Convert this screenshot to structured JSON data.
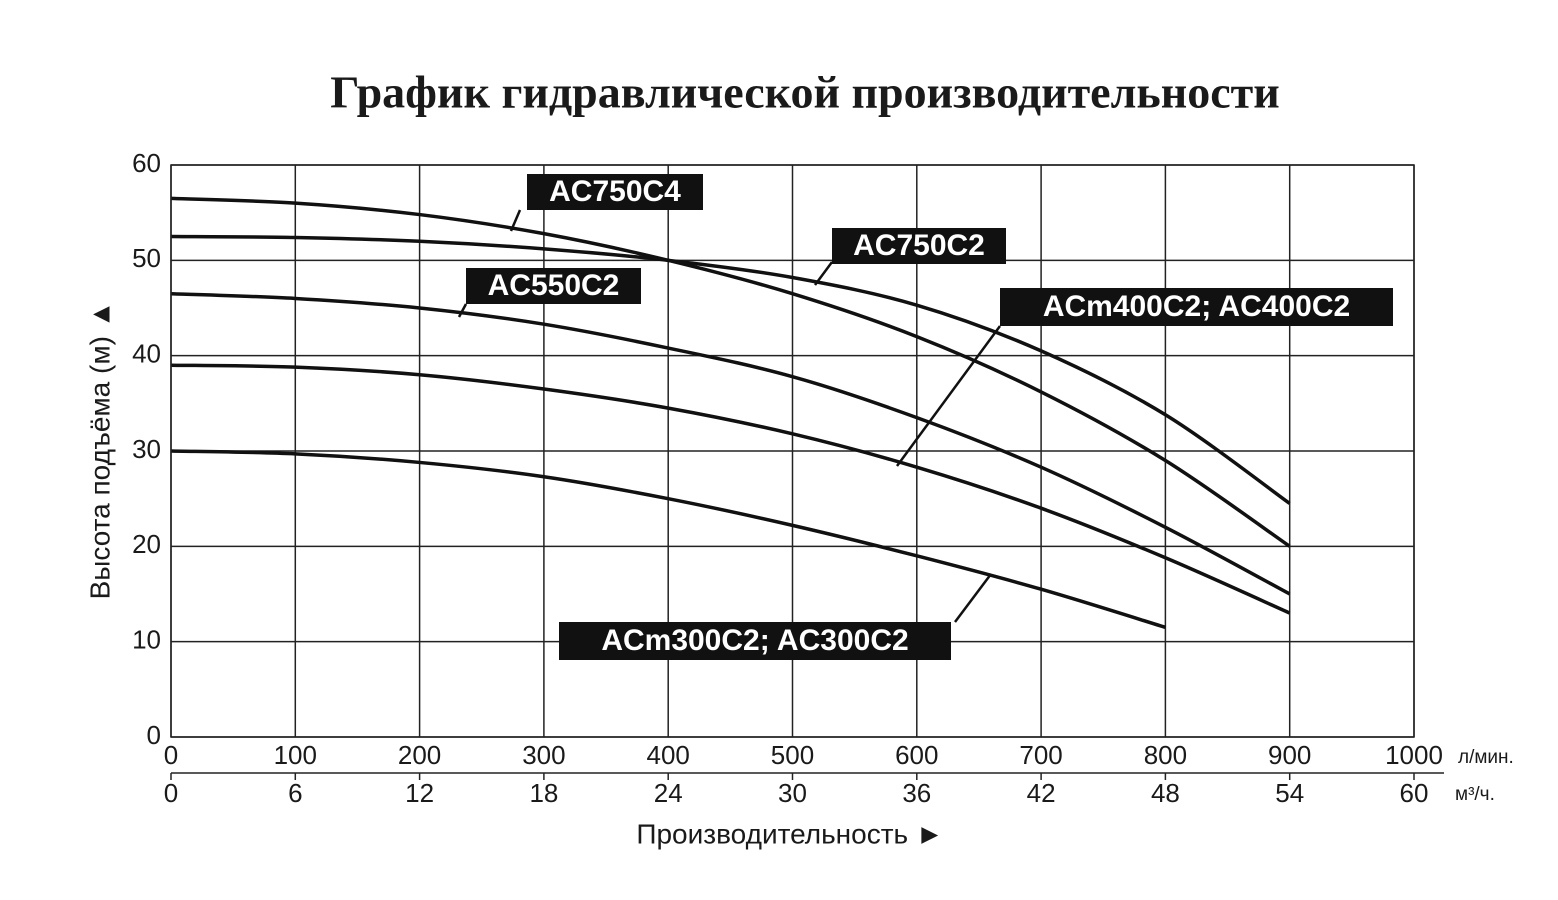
{
  "chart_data": {
    "type": "line",
    "title": "График гидравлической производительности",
    "ylabel": "Высота подъёма (м) ▲",
    "xlabel": "Производительность ►",
    "xunit": "л/мин.",
    "x2unit": "м³/ч.",
    "x": [
      0,
      100,
      200,
      300,
      400,
      500,
      600,
      700,
      800,
      900
    ],
    "xlim": [
      0,
      1000
    ],
    "xticks": [
      0,
      100,
      200,
      300,
      400,
      500,
      600,
      700,
      800,
      900,
      1000
    ],
    "x2lim": [
      0,
      60
    ],
    "x2ticks": [
      0,
      6,
      12,
      18,
      24,
      30,
      36,
      42,
      48,
      54,
      60
    ],
    "ylim": [
      0,
      60
    ],
    "yticks": [
      0,
      10,
      20,
      30,
      40,
      50,
      60
    ],
    "grid": true,
    "series": [
      {
        "name": "AC750C4",
        "color": "#111111",
        "values": [
          56.5,
          56,
          54.8,
          52.8,
          50,
          46.5,
          42,
          36.2,
          29,
          20
        ]
      },
      {
        "name": "AC750C2",
        "color": "#111111",
        "values": [
          52.5,
          52.4,
          52,
          51.2,
          50,
          48.2,
          45.3,
          40.5,
          33.8,
          24.5
        ]
      },
      {
        "name": "AC550C2",
        "color": "#111111",
        "values": [
          46.5,
          46,
          45,
          43.3,
          40.8,
          37.8,
          33.5,
          28.3,
          22,
          15
        ]
      },
      {
        "name": "ACm400C2; AC400C2",
        "color": "#111111",
        "values": [
          39,
          38.8,
          38,
          36.5,
          34.5,
          31.8,
          28.3,
          24,
          18.8,
          13
        ]
      },
      {
        "name": "ACm300C2; AC300C2",
        "color": "#111111",
        "values": [
          30,
          29.7,
          28.8,
          27.3,
          25,
          22.2,
          19,
          15.5,
          11.5,
          null
        ]
      }
    ]
  }
}
